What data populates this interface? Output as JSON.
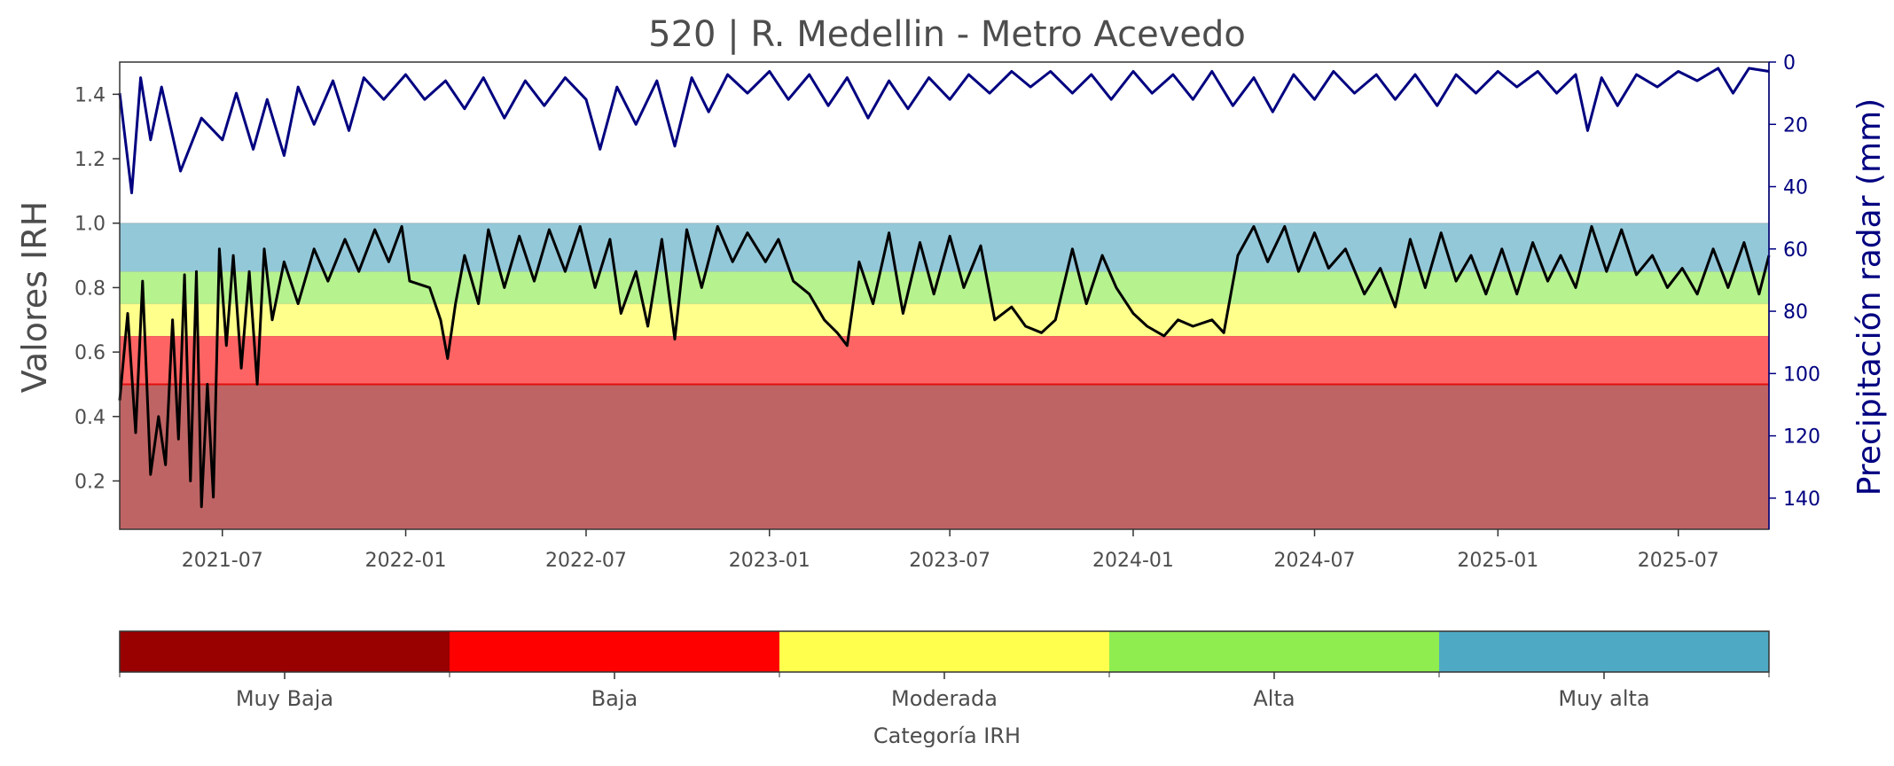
{
  "chart_data": {
    "type": "line",
    "title": "520 | R. Medellin - Metro Acevedo",
    "ylabel": "Valores IRH",
    "y2label": "Precipitación radar (mm)",
    "xlim": [
      "2021-03-20",
      "2025-09-30"
    ],
    "ylim": [
      0.05,
      1.5
    ],
    "y2lim": [
      150,
      0
    ],
    "y2_inverted": true,
    "x_ticks": [
      "2021-07",
      "2022-01",
      "2022-07",
      "2023-01",
      "2023-07",
      "2024-01",
      "2024-07",
      "2025-01",
      "2025-07"
    ],
    "y_ticks": [
      "0.2",
      "0.4",
      "0.6",
      "0.8",
      "1.0",
      "1.2",
      "1.4"
    ],
    "y2_ticks": [
      "0",
      "20",
      "40",
      "60",
      "80",
      "100",
      "120",
      "140"
    ],
    "bands": [
      {
        "from": 0.05,
        "to": 0.5,
        "color": "#bf6464"
      },
      {
        "from": 0.5,
        "to": 0.65,
        "color": "#ff6464"
      },
      {
        "from": 0.65,
        "to": 0.75,
        "color": "#ffff8c"
      },
      {
        "from": 0.75,
        "to": 0.85,
        "color": "#b6f28e"
      },
      {
        "from": 0.85,
        "to": 1.0,
        "color": "#93c8d9"
      }
    ],
    "threshold_line": {
      "y": 0.5,
      "color": "#e01010"
    },
    "series": [
      {
        "axis": "left",
        "color": "#000000",
        "points": [
          [
            "2021-03-20",
            0.45
          ],
          [
            "2021-03-28",
            0.72
          ],
          [
            "2021-04-05",
            0.35
          ],
          [
            "2021-04-12",
            0.82
          ],
          [
            "2021-04-20",
            0.22
          ],
          [
            "2021-04-28",
            0.4
          ],
          [
            "2021-05-05",
            0.25
          ],
          [
            "2021-05-12",
            0.7
          ],
          [
            "2021-05-18",
            0.33
          ],
          [
            "2021-05-24",
            0.84
          ],
          [
            "2021-05-30",
            0.2
          ],
          [
            "2021-06-05",
            0.85
          ],
          [
            "2021-06-10",
            0.12
          ],
          [
            "2021-06-16",
            0.5
          ],
          [
            "2021-06-22",
            0.15
          ],
          [
            "2021-06-28",
            0.92
          ],
          [
            "2021-07-05",
            0.62
          ],
          [
            "2021-07-12",
            0.9
          ],
          [
            "2021-07-20",
            0.55
          ],
          [
            "2021-07-28",
            0.85
          ],
          [
            "2021-08-05",
            0.5
          ],
          [
            "2021-08-12",
            0.92
          ],
          [
            "2021-08-20",
            0.7
          ],
          [
            "2021-09-01",
            0.88
          ],
          [
            "2021-09-15",
            0.75
          ],
          [
            "2021-10-01",
            0.92
          ],
          [
            "2021-10-15",
            0.82
          ],
          [
            "2021-11-01",
            0.95
          ],
          [
            "2021-11-15",
            0.85
          ],
          [
            "2021-12-01",
            0.98
          ],
          [
            "2021-12-15",
            0.88
          ],
          [
            "2021-12-28",
            0.99
          ],
          [
            "2022-01-05",
            0.82
          ],
          [
            "2022-01-25",
            0.8
          ],
          [
            "2022-02-05",
            0.7
          ],
          [
            "2022-02-12",
            0.58
          ],
          [
            "2022-02-20",
            0.75
          ],
          [
            "2022-03-01",
            0.9
          ],
          [
            "2022-03-15",
            0.75
          ],
          [
            "2022-03-25",
            0.98
          ],
          [
            "2022-04-10",
            0.8
          ],
          [
            "2022-04-25",
            0.96
          ],
          [
            "2022-05-10",
            0.82
          ],
          [
            "2022-05-25",
            0.98
          ],
          [
            "2022-06-10",
            0.85
          ],
          [
            "2022-06-25",
            0.99
          ],
          [
            "2022-07-10",
            0.8
          ],
          [
            "2022-07-25",
            0.95
          ],
          [
            "2022-08-05",
            0.72
          ],
          [
            "2022-08-20",
            0.85
          ],
          [
            "2022-09-01",
            0.68
          ],
          [
            "2022-09-15",
            0.95
          ],
          [
            "2022-09-28",
            0.64
          ],
          [
            "2022-10-10",
            0.98
          ],
          [
            "2022-10-25",
            0.8
          ],
          [
            "2022-11-10",
            0.99
          ],
          [
            "2022-11-25",
            0.88
          ],
          [
            "2022-12-10",
            0.97
          ],
          [
            "2022-12-28",
            0.88
          ],
          [
            "2023-01-10",
            0.95
          ],
          [
            "2023-01-25",
            0.82
          ],
          [
            "2023-02-10",
            0.78
          ],
          [
            "2023-02-25",
            0.7
          ],
          [
            "2023-03-10",
            0.66
          ],
          [
            "2023-03-20",
            0.62
          ],
          [
            "2023-04-01",
            0.88
          ],
          [
            "2023-04-15",
            0.75
          ],
          [
            "2023-05-01",
            0.97
          ],
          [
            "2023-05-15",
            0.72
          ],
          [
            "2023-06-01",
            0.94
          ],
          [
            "2023-06-15",
            0.78
          ],
          [
            "2023-07-01",
            0.96
          ],
          [
            "2023-07-15",
            0.8
          ],
          [
            "2023-08-01",
            0.93
          ],
          [
            "2023-08-15",
            0.7
          ],
          [
            "2023-09-01",
            0.74
          ],
          [
            "2023-09-15",
            0.68
          ],
          [
            "2023-10-01",
            0.66
          ],
          [
            "2023-10-15",
            0.7
          ],
          [
            "2023-11-01",
            0.92
          ],
          [
            "2023-11-15",
            0.75
          ],
          [
            "2023-12-01",
            0.9
          ],
          [
            "2023-12-15",
            0.8
          ],
          [
            "2024-01-01",
            0.72
          ],
          [
            "2024-01-15",
            0.68
          ],
          [
            "2024-02-01",
            0.65
          ],
          [
            "2024-02-15",
            0.7
          ],
          [
            "2024-03-01",
            0.68
          ],
          [
            "2024-03-20",
            0.7
          ],
          [
            "2024-04-01",
            0.66
          ],
          [
            "2024-04-15",
            0.9
          ],
          [
            "2024-05-01",
            0.99
          ],
          [
            "2024-05-15",
            0.88
          ],
          [
            "2024-06-01",
            0.99
          ],
          [
            "2024-06-15",
            0.85
          ],
          [
            "2024-07-01",
            0.97
          ],
          [
            "2024-07-15",
            0.86
          ],
          [
            "2024-08-01",
            0.92
          ],
          [
            "2024-08-20",
            0.78
          ],
          [
            "2024-09-05",
            0.86
          ],
          [
            "2024-09-20",
            0.74
          ],
          [
            "2024-10-05",
            0.95
          ],
          [
            "2024-10-20",
            0.8
          ],
          [
            "2024-11-05",
            0.97
          ],
          [
            "2024-11-20",
            0.82
          ],
          [
            "2024-12-05",
            0.9
          ],
          [
            "2024-12-20",
            0.78
          ],
          [
            "2025-01-05",
            0.92
          ],
          [
            "2025-01-20",
            0.78
          ],
          [
            "2025-02-05",
            0.94
          ],
          [
            "2025-02-20",
            0.82
          ],
          [
            "2025-03-05",
            0.9
          ],
          [
            "2025-03-20",
            0.8
          ],
          [
            "2025-04-05",
            0.99
          ],
          [
            "2025-04-20",
            0.85
          ],
          [
            "2025-05-05",
            0.98
          ],
          [
            "2025-05-20",
            0.84
          ],
          [
            "2025-06-05",
            0.9
          ],
          [
            "2025-06-20",
            0.8
          ],
          [
            "2025-07-05",
            0.86
          ],
          [
            "2025-07-20",
            0.78
          ],
          [
            "2025-08-05",
            0.92
          ],
          [
            "2025-08-20",
            0.8
          ],
          [
            "2025-09-05",
            0.94
          ],
          [
            "2025-09-20",
            0.78
          ],
          [
            "2025-09-30",
            0.9
          ]
        ]
      },
      {
        "axis": "right",
        "color": "#000080",
        "points": [
          [
            "2021-03-20",
            10
          ],
          [
            "2021-04-01",
            42
          ],
          [
            "2021-04-10",
            5
          ],
          [
            "2021-04-20",
            25
          ],
          [
            "2021-05-01",
            8
          ],
          [
            "2021-05-20",
            35
          ],
          [
            "2021-06-10",
            18
          ],
          [
            "2021-07-01",
            25
          ],
          [
            "2021-07-15",
            10
          ],
          [
            "2021-08-01",
            28
          ],
          [
            "2021-08-15",
            12
          ],
          [
            "2021-09-01",
            30
          ],
          [
            "2021-09-15",
            8
          ],
          [
            "2021-10-01",
            20
          ],
          [
            "2021-10-20",
            6
          ],
          [
            "2021-11-05",
            22
          ],
          [
            "2021-11-20",
            5
          ],
          [
            "2021-12-10",
            12
          ],
          [
            "2022-01-01",
            4
          ],
          [
            "2022-01-20",
            12
          ],
          [
            "2022-02-10",
            6
          ],
          [
            "2022-03-01",
            15
          ],
          [
            "2022-03-20",
            5
          ],
          [
            "2022-04-10",
            18
          ],
          [
            "2022-05-01",
            6
          ],
          [
            "2022-05-20",
            14
          ],
          [
            "2022-06-10",
            5
          ],
          [
            "2022-07-01",
            12
          ],
          [
            "2022-07-15",
            28
          ],
          [
            "2022-08-01",
            8
          ],
          [
            "2022-08-20",
            20
          ],
          [
            "2022-09-10",
            6
          ],
          [
            "2022-09-28",
            27
          ],
          [
            "2022-10-15",
            5
          ],
          [
            "2022-11-01",
            16
          ],
          [
            "2022-11-20",
            4
          ],
          [
            "2022-12-10",
            10
          ],
          [
            "2023-01-01",
            3
          ],
          [
            "2023-01-20",
            12
          ],
          [
            "2023-02-10",
            4
          ],
          [
            "2023-03-01",
            14
          ],
          [
            "2023-03-20",
            5
          ],
          [
            "2023-04-10",
            18
          ],
          [
            "2023-05-01",
            6
          ],
          [
            "2023-05-20",
            15
          ],
          [
            "2023-06-10",
            5
          ],
          [
            "2023-07-01",
            12
          ],
          [
            "2023-07-20",
            4
          ],
          [
            "2023-08-10",
            10
          ],
          [
            "2023-09-01",
            3
          ],
          [
            "2023-09-20",
            8
          ],
          [
            "2023-10-10",
            3
          ],
          [
            "2023-11-01",
            10
          ],
          [
            "2023-11-20",
            4
          ],
          [
            "2023-12-10",
            12
          ],
          [
            "2024-01-01",
            3
          ],
          [
            "2024-01-20",
            10
          ],
          [
            "2024-02-10",
            4
          ],
          [
            "2024-03-01",
            12
          ],
          [
            "2024-03-20",
            3
          ],
          [
            "2024-04-10",
            14
          ],
          [
            "2024-05-01",
            5
          ],
          [
            "2024-05-20",
            16
          ],
          [
            "2024-06-10",
            4
          ],
          [
            "2024-07-01",
            12
          ],
          [
            "2024-07-20",
            3
          ],
          [
            "2024-08-10",
            10
          ],
          [
            "2024-09-01",
            4
          ],
          [
            "2024-09-20",
            12
          ],
          [
            "2024-10-10",
            4
          ],
          [
            "2024-11-01",
            14
          ],
          [
            "2024-11-20",
            4
          ],
          [
            "2024-12-10",
            10
          ],
          [
            "2025-01-01",
            3
          ],
          [
            "2025-01-20",
            8
          ],
          [
            "2025-02-10",
            3
          ],
          [
            "2025-03-01",
            10
          ],
          [
            "2025-03-20",
            4
          ],
          [
            "2025-04-01",
            22
          ],
          [
            "2025-04-15",
            5
          ],
          [
            "2025-05-01",
            14
          ],
          [
            "2025-05-20",
            4
          ],
          [
            "2025-06-10",
            8
          ],
          [
            "2025-07-01",
            3
          ],
          [
            "2025-07-20",
            6
          ],
          [
            "2025-08-10",
            2
          ],
          [
            "2025-08-25",
            10
          ],
          [
            "2025-09-10",
            2
          ],
          [
            "2025-09-30",
            3
          ]
        ]
      }
    ]
  },
  "colorbar": {
    "title": "Categoría IRH",
    "categories": [
      {
        "label": "Muy Baja",
        "color": "#990000"
      },
      {
        "label": "Baja",
        "color": "#ff0000"
      },
      {
        "label": "Moderada",
        "color": "#ffff4d"
      },
      {
        "label": "Alta",
        "color": "#8fed4f"
      },
      {
        "label": "Muy alta",
        "color": "#4eaac4"
      }
    ]
  }
}
